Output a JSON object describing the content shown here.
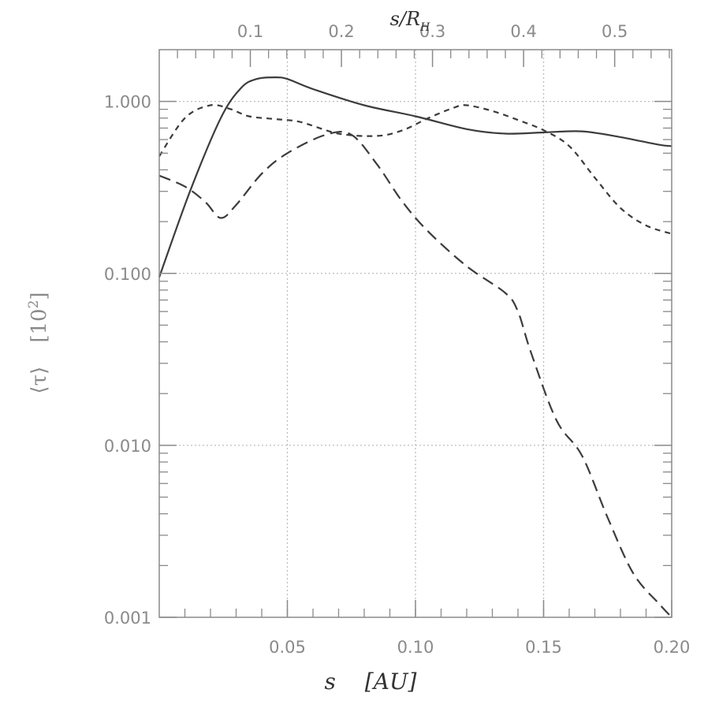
{
  "chart_data": {
    "type": "line",
    "xlabel": "s",
    "xlabel_unit": "[AU]",
    "x2label": "s/R",
    "x2label_sub": "H",
    "ylabel_symbol": "⟨τ⟩",
    "ylabel_unit_open": "[10",
    "ylabel_unit_sup": "2",
    "ylabel_unit_close": "]",
    "y_scale": "log",
    "xlim": [
      0.0,
      0.2
    ],
    "ylim": [
      0.001,
      2.0
    ],
    "x_ticks": [
      0.05,
      0.1,
      0.15,
      0.2
    ],
    "x_tick_labels": [
      "0.05",
      "0.10",
      "0.15",
      "0.20"
    ],
    "x2_ticks": [
      0.1,
      0.2,
      0.3,
      0.4,
      0.5
    ],
    "x2_tick_labels": [
      "0.1",
      "0.2",
      "0.3",
      "0.4",
      "0.5"
    ],
    "x2_per_x": 2.813,
    "y_ticks": [
      0.001,
      0.01,
      0.1,
      1.0
    ],
    "y_tick_labels": [
      "0.001",
      "0.010",
      "0.100",
      "1.000"
    ],
    "grid": true,
    "series": [
      {
        "style": "solid",
        "x": [
          0.0,
          0.012,
          0.024,
          0.032,
          0.038,
          0.045,
          0.05,
          0.06,
          0.08,
          0.1,
          0.12,
          0.135,
          0.15,
          0.165,
          0.18,
          0.195,
          0.2
        ],
        "y": [
          0.095,
          0.3,
          0.8,
          1.2,
          1.35,
          1.38,
          1.35,
          1.18,
          0.95,
          0.82,
          0.69,
          0.65,
          0.66,
          0.67,
          0.62,
          0.56,
          0.55
        ]
      },
      {
        "style": "short-dash",
        "x": [
          0.0,
          0.01,
          0.02,
          0.028,
          0.035,
          0.045,
          0.055,
          0.07,
          0.085,
          0.095,
          0.105,
          0.115,
          0.12,
          0.13,
          0.14,
          0.15,
          0.16,
          0.17,
          0.18,
          0.19,
          0.2
        ],
        "y": [
          0.48,
          0.8,
          0.95,
          0.9,
          0.82,
          0.79,
          0.76,
          0.65,
          0.63,
          0.68,
          0.8,
          0.92,
          0.95,
          0.88,
          0.78,
          0.68,
          0.55,
          0.36,
          0.24,
          0.19,
          0.17
        ]
      },
      {
        "style": "long-dash",
        "x": [
          0.0,
          0.01,
          0.018,
          0.024,
          0.03,
          0.04,
          0.05,
          0.065,
          0.075,
          0.085,
          0.095,
          0.105,
          0.12,
          0.135,
          0.14,
          0.145,
          0.155,
          0.165,
          0.175,
          0.185,
          0.195,
          0.2
        ],
        "y": [
          0.37,
          0.32,
          0.26,
          0.21,
          0.25,
          0.38,
          0.5,
          0.64,
          0.64,
          0.43,
          0.26,
          0.175,
          0.11,
          0.077,
          0.06,
          0.035,
          0.014,
          0.0087,
          0.0038,
          0.0018,
          0.0012,
          0.001
        ]
      }
    ]
  }
}
